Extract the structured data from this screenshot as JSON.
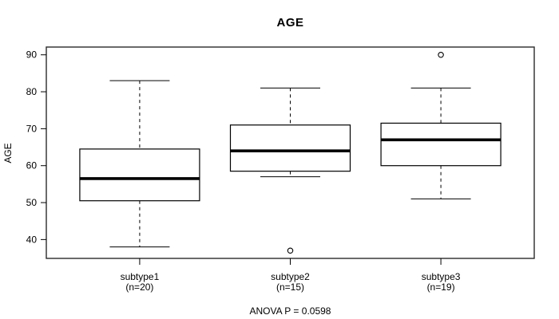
{
  "title": "AGE",
  "chart_data": {
    "type": "boxplot",
    "title": "AGE",
    "xlabel": "",
    "ylabel": "AGE",
    "annotation": "ANOVA P = 0.0598",
    "ylim": [
      34.9,
      92.1
    ],
    "yticks": [
      40,
      50,
      60,
      70,
      80,
      90
    ],
    "grid": false,
    "legend": "none",
    "colors": {
      "line": "#000000",
      "box_fill": "#ffffff",
      "background": "#ffffff"
    },
    "categories": [
      {
        "label": "subtype1",
        "sublabel": "(n=20)"
      },
      {
        "label": "subtype2",
        "sublabel": "(n=15)"
      },
      {
        "label": "subtype3",
        "sublabel": "(n=19)"
      }
    ],
    "boxes": [
      {
        "group": "subtype1",
        "n": 20,
        "whisker_low": 38,
        "q1": 50.5,
        "median": 56.5,
        "q3": 64.5,
        "whisker_high": 83,
        "outliers": []
      },
      {
        "group": "subtype2",
        "n": 15,
        "whisker_low": 57,
        "q1": 58.5,
        "median": 64,
        "q3": 71,
        "whisker_high": 81,
        "outliers": [
          37
        ]
      },
      {
        "group": "subtype3",
        "n": 19,
        "whisker_low": 51,
        "q1": 60,
        "median": 67,
        "q3": 71.5,
        "whisker_high": 81,
        "outliers": [
          90
        ]
      }
    ]
  }
}
